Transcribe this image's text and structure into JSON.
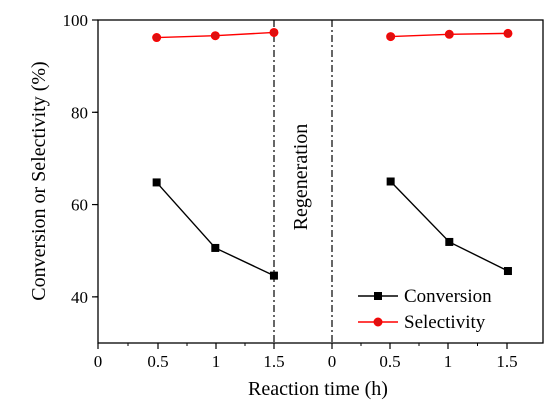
{
  "chart_data": {
    "type": "line",
    "xlabel": "Reaction time (h)",
    "ylabel": "Conversion or Selectivity (%)",
    "ylim": [
      30,
      100
    ],
    "x_ticks": [
      "0",
      "0.5",
      "1",
      "1.5",
      "0",
      "0.5",
      "1",
      "1.5"
    ],
    "y_ticks": [
      40,
      60,
      80,
      100
    ],
    "annotation": "Regeneration",
    "legend_position": "bottom-right",
    "grid": false,
    "segments": [
      {
        "x": [
          0.5,
          1,
          1.5
        ],
        "series": [
          {
            "name": "Conversion",
            "values": [
              64.8,
              50.6,
              44.6
            ]
          },
          {
            "name": "Selectivity",
            "values": [
              96.2,
              96.6,
              97.3
            ]
          }
        ]
      },
      {
        "x": [
          0.5,
          1,
          1.5
        ],
        "series": [
          {
            "name": "Conversion",
            "values": [
              65.0,
              51.9,
              45.6
            ]
          },
          {
            "name": "Selectivity",
            "values": [
              96.4,
              96.9,
              97.1
            ]
          }
        ]
      }
    ],
    "series_styles": [
      {
        "name": "Conversion",
        "color": "#000000",
        "marker": "square"
      },
      {
        "name": "Selectivity",
        "color": "#ff0000",
        "marker": "circle",
        "marker_fill": "#dd1111"
      }
    ]
  }
}
